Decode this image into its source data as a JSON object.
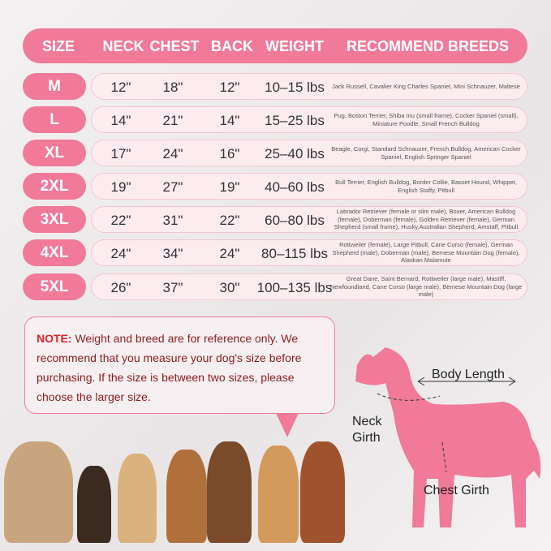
{
  "header": [
    "SIZE",
    "NECK",
    "CHEST",
    "BACK",
    "WEIGHT",
    "RECOMMEND BREEDS"
  ],
  "rows": [
    {
      "size": "M",
      "neck": "12\"",
      "chest": "18\"",
      "back": "12\"",
      "weight": "10–15 lbs",
      "breeds": "Jack Russell, Cavalier King Charles Spaniel, Mini Schnauzer, Maltese"
    },
    {
      "size": "L",
      "neck": "14\"",
      "chest": "21\"",
      "back": "14\"",
      "weight": "15–25 lbs",
      "breeds": "Pug, Boston Terrier, Shiba Inu (small frame), Cocker Spaniel (small), Miniature Poodle, Small French Bulldog"
    },
    {
      "size": "XL",
      "neck": "17\"",
      "chest": "24\"",
      "back": "16\"",
      "weight": "25–40 lbs",
      "breeds": "Beagle, Corgi, Standard Schnauzer, French Bulldog, American Cocker Spaniel, English Springer Spaniel"
    },
    {
      "size": "2XL",
      "neck": "19\"",
      "chest": "27\"",
      "back": "19\"",
      "weight": "40–60 lbs",
      "breeds": "Bull Terrier, English Bulldog, Border Collie,  Basset Hound, Whippet, English Staffy,  Pitbull"
    },
    {
      "size": "3XL",
      "neck": "22\"",
      "chest": "31\"",
      "back": "22\"",
      "weight": "60–80 lbs",
      "breeds": "Labrador Retriever (female or slim male), Boxer, American Bulldog (female), Doberman (female), Golden Retriever (female), German Shepherd (small frame), Husky,Australian Shepherd,  Amstaff,  Pitbull"
    },
    {
      "size": "4XL",
      "neck": "24\"",
      "chest": "34\"",
      "back": "24\"",
      "weight": "80–115 lbs",
      "breeds": "Rottweiler (female), Large Pitbull, Cane Corso (female), German Shepherd (male), Doberman (male), Bernese Mountain Dog (female), Alaskan Malamute"
    },
    {
      "size": "5XL",
      "neck": "26\"",
      "chest": "37\"",
      "back": "30\"",
      "weight": "100–135 lbs",
      "breeds": "Great Dane, Saint Bernard, Rottweiler (large male), Mastiff, Newfoundland, Cane Corso (large male), Bernese Mountain Dog (large male)"
    }
  ],
  "note": {
    "label": "NOTE:",
    "text": " Weight and breed are for reference only. We recommend that you measure your dog's size before purchasing. If the size is between two sizes, please choose the larger size."
  },
  "diagram": {
    "body_length": "Body Length",
    "neck_girth": "Neck Girth",
    "chest_girth": "Chest Girth"
  },
  "colors": {
    "accent": "#f07a98",
    "row_bg": "#fdecf0",
    "note_label": "#e2222e"
  }
}
